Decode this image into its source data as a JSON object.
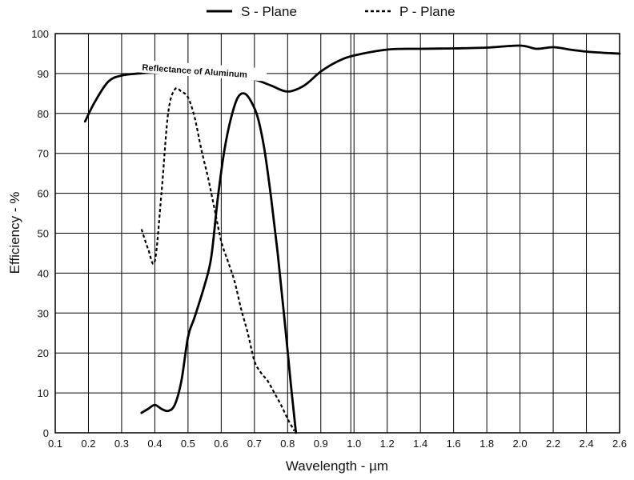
{
  "chart_data": {
    "type": "line",
    "xlabel": "Wavelength - µm",
    "ylabel": "Efficiency - %",
    "ylim": [
      0,
      100
    ],
    "grid": true,
    "legend_placement": "top",
    "x_ticks": [
      "0.1",
      "0.2",
      "0.3",
      "0.4",
      "0.5",
      "0.6",
      "0.7",
      "0.8",
      "0.9",
      "1.0",
      "1.2",
      "1.4",
      "1.6",
      "1.8",
      "2.0",
      "2.2",
      "2.4",
      "2.6"
    ],
    "y_ticks": [
      "0",
      "10",
      "20",
      "30",
      "40",
      "50",
      "60",
      "70",
      "80",
      "90",
      "100"
    ],
    "x_scale": "piecewise linear: 0.1–1.0 in 0.1 µm steps, 1.0–2.6 in 0.2 µm steps (equal tick spacing)",
    "series": [
      {
        "name": "S - Plane",
        "style": "solid",
        "points": [
          [
            0.36,
            5
          ],
          [
            0.38,
            6
          ],
          [
            0.4,
            7
          ],
          [
            0.42,
            6
          ],
          [
            0.44,
            5.5
          ],
          [
            0.46,
            7
          ],
          [
            0.48,
            13
          ],
          [
            0.5,
            24
          ],
          [
            0.52,
            29
          ],
          [
            0.55,
            37
          ],
          [
            0.57,
            44
          ],
          [
            0.59,
            59
          ],
          [
            0.61,
            71
          ],
          [
            0.63,
            79
          ],
          [
            0.65,
            84
          ],
          [
            0.67,
            85
          ],
          [
            0.69,
            83
          ],
          [
            0.71,
            79
          ],
          [
            0.73,
            71
          ],
          [
            0.75,
            59
          ],
          [
            0.77,
            45
          ],
          [
            0.79,
            29
          ],
          [
            0.81,
            12
          ],
          [
            0.825,
            0
          ]
        ]
      },
      {
        "name": "P - Plane",
        "style": "dashed",
        "points": [
          [
            0.36,
            51
          ],
          [
            0.38,
            46
          ],
          [
            0.4,
            43
          ],
          [
            0.42,
            60
          ],
          [
            0.44,
            80
          ],
          [
            0.46,
            86
          ],
          [
            0.48,
            85.5
          ],
          [
            0.5,
            84
          ],
          [
            0.52,
            79
          ],
          [
            0.54,
            71
          ],
          [
            0.56,
            64
          ],
          [
            0.58,
            56
          ],
          [
            0.6,
            48
          ],
          [
            0.62,
            43
          ],
          [
            0.64,
            38
          ],
          [
            0.66,
            31
          ],
          [
            0.68,
            25
          ],
          [
            0.7,
            18
          ],
          [
            0.72,
            15
          ],
          [
            0.74,
            13
          ],
          [
            0.76,
            10
          ],
          [
            0.78,
            7
          ],
          [
            0.8,
            3.5
          ],
          [
            0.82,
            0.5
          ]
        ]
      },
      {
        "name": "Reflectance of Aluminum",
        "style": "solid",
        "points": [
          [
            0.19,
            78
          ],
          [
            0.22,
            83
          ],
          [
            0.26,
            88
          ],
          [
            0.3,
            89.5
          ],
          [
            0.35,
            90
          ],
          [
            0.4,
            90.5
          ],
          [
            0.45,
            92
          ],
          [
            0.5,
            92
          ],
          [
            0.55,
            91
          ],
          [
            0.6,
            89.5
          ],
          [
            0.65,
            89
          ],
          [
            0.7,
            88.5
          ],
          [
            0.75,
            87
          ],
          [
            0.8,
            85.5
          ],
          [
            0.85,
            87
          ],
          [
            0.9,
            90.5
          ],
          [
            0.95,
            93
          ],
          [
            1.0,
            94.5
          ],
          [
            1.2,
            96
          ],
          [
            1.4,
            96.2
          ],
          [
            1.6,
            96.3
          ],
          [
            1.8,
            96.5
          ],
          [
            2.0,
            97
          ],
          [
            2.1,
            96.2
          ],
          [
            2.2,
            96.6
          ],
          [
            2.3,
            96
          ],
          [
            2.4,
            95.5
          ],
          [
            2.5,
            95.2
          ],
          [
            2.6,
            95
          ]
        ]
      }
    ],
    "annotations": [
      {
        "text": "Reflectance of Aluminum",
        "x": 0.52,
        "y": 90.5
      }
    ]
  }
}
